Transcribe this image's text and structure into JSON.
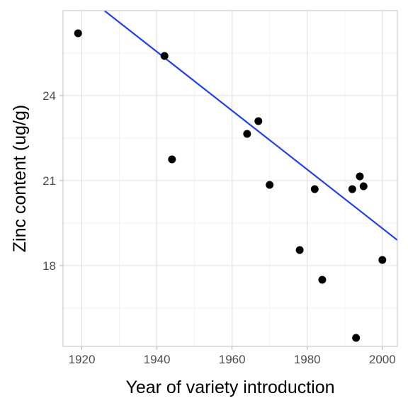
{
  "chart_data": {
    "type": "scatter",
    "xlabel": "Year of variety introduction",
    "ylabel": "Zinc content (ug/g)",
    "xlim": [
      1915,
      2004
    ],
    "ylim": [
      15.15,
      27.0
    ],
    "x_ticks": [
      1920,
      1940,
      1960,
      1980,
      2000
    ],
    "y_ticks": [
      18,
      21,
      24
    ],
    "x_minor_ticks": [
      1930,
      1950,
      1970,
      1990
    ],
    "y_minor_ticks": [
      16.5,
      19.5,
      22.5,
      25.5
    ],
    "grid": true,
    "legend": "none",
    "points": [
      {
        "x": 1919,
        "y": 26.2
      },
      {
        "x": 1942,
        "y": 25.4
      },
      {
        "x": 1944,
        "y": 21.75
      },
      {
        "x": 1964,
        "y": 22.65
      },
      {
        "x": 1967,
        "y": 23.1
      },
      {
        "x": 1970,
        "y": 20.85
      },
      {
        "x": 1978,
        "y": 18.55
      },
      {
        "x": 1982,
        "y": 20.7
      },
      {
        "x": 1984,
        "y": 17.5
      },
      {
        "x": 1992,
        "y": 20.7
      },
      {
        "x": 1993,
        "y": 15.45
      },
      {
        "x": 1994,
        "y": 21.15
      },
      {
        "x": 1995,
        "y": 20.8
      },
      {
        "x": 2000,
        "y": 18.2
      }
    ],
    "trend_line": {
      "method": "linear",
      "x": [
        1926,
        2004
      ],
      "y": [
        27.0,
        18.9
      ]
    },
    "colors": {
      "points": "#000000",
      "trend_line": "#2040f0",
      "grid_major": "#dcdcdc",
      "grid_minor": "#eeeeee",
      "panel_border": "#c8c8c8"
    }
  }
}
